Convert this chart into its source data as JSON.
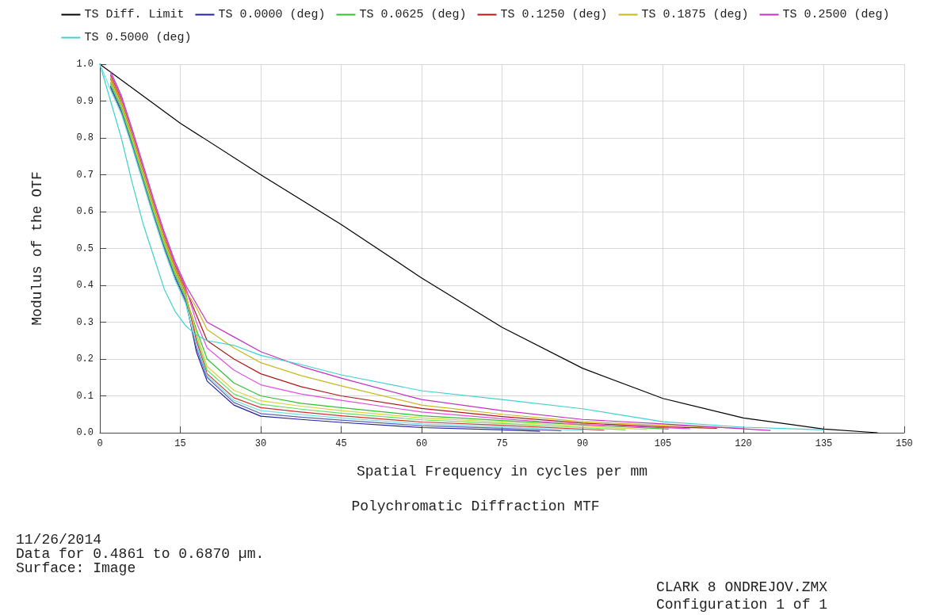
{
  "chart_data": {
    "type": "line",
    "title": "Polychromatic Diffraction MTF",
    "xlabel": "Spatial Frequency in cycles per mm",
    "ylabel": "Modulus of the OTF",
    "annotations": [
      "11/26/2014",
      "Data for 0.4861 to 0.6870 µm.",
      "Surface: Image",
      "CLARK 8 ONDREJOV.ZMX",
      "Configuration 1 of 1"
    ],
    "series": [
      {
        "name": "TS Diff. Limit",
        "color": "#000000",
        "x": [
          0,
          15,
          30,
          45,
          60,
          75,
          90,
          105,
          120,
          135,
          145
        ],
        "values": [
          1,
          0.84,
          0.7,
          0.565,
          0.42,
          0.286,
          0.175,
          0.093,
          0.04,
          0.01,
          0
        ]
      },
      {
        "name": "TS 0.0000 (deg)",
        "color": "#2020a0",
        "x": [
          2,
          4,
          6,
          8,
          10,
          12,
          14,
          16,
          18,
          20,
          25,
          30,
          37.5,
          45,
          60,
          75,
          82
        ],
        "values": [
          0.94,
          0.875,
          0.785,
          0.69,
          0.595,
          0.505,
          0.425,
          0.36,
          0.22,
          0.14,
          0.075,
          0.045,
          0.036,
          0.028,
          0.014,
          0.008,
          0.004
        ]
      },
      {
        "color": "#6060b0",
        "x": [
          2,
          4,
          6,
          8,
          10,
          12,
          14,
          16,
          18,
          20,
          25,
          30,
          37.5,
          45,
          60,
          75,
          86
        ],
        "values": [
          0.935,
          0.87,
          0.78,
          0.685,
          0.59,
          0.5,
          0.42,
          0.355,
          0.23,
          0.15,
          0.082,
          0.052,
          0.042,
          0.034,
          0.019,
          0.012,
          0.005
        ]
      },
      {
        "name": "TS 0.0625 (deg)",
        "color": "#30c030",
        "x": [
          2,
          4,
          6,
          8,
          10,
          12,
          14,
          16,
          18,
          20,
          25,
          30,
          37.5,
          45,
          60,
          75,
          106
        ],
        "values": [
          0.95,
          0.885,
          0.795,
          0.7,
          0.605,
          0.515,
          0.435,
          0.37,
          0.28,
          0.2,
          0.135,
          0.1,
          0.08,
          0.068,
          0.046,
          0.033,
          0.01
        ]
      },
      {
        "color": "#60e060",
        "x": [
          2,
          4,
          6,
          8,
          10,
          12,
          14,
          16,
          18,
          20,
          25,
          30,
          37.5,
          45,
          60,
          75,
          98
        ],
        "values": [
          0.945,
          0.88,
          0.79,
          0.695,
          0.6,
          0.51,
          0.43,
          0.365,
          0.26,
          0.17,
          0.105,
          0.077,
          0.064,
          0.053,
          0.035,
          0.025,
          0.008
        ]
      },
      {
        "name": "TS 0.1250 (deg)",
        "color": "#b01818",
        "x": [
          2,
          4,
          6,
          8,
          10,
          12,
          14,
          16,
          18,
          20,
          25,
          30,
          37.5,
          45,
          60,
          75,
          90,
          105,
          115
        ],
        "values": [
          0.97,
          0.905,
          0.815,
          0.72,
          0.625,
          0.535,
          0.455,
          0.39,
          0.32,
          0.25,
          0.2,
          0.16,
          0.125,
          0.1,
          0.066,
          0.044,
          0.026,
          0.016,
          0.012
        ]
      },
      {
        "color": "#d03030",
        "x": [
          2,
          4,
          6,
          8,
          10,
          12,
          14,
          16,
          18,
          20,
          25,
          30,
          37.5,
          45,
          60,
          75,
          94
        ],
        "values": [
          0.96,
          0.895,
          0.805,
          0.71,
          0.615,
          0.525,
          0.445,
          0.38,
          0.25,
          0.16,
          0.095,
          0.068,
          0.056,
          0.046,
          0.029,
          0.02,
          0.007
        ]
      },
      {
        "name": "TS 0.1875 (deg)",
        "color": "#c8b820",
        "x": [
          2,
          4,
          6,
          8,
          10,
          12,
          14,
          16,
          18,
          20,
          25,
          30,
          37.5,
          45,
          60,
          75,
          90,
          105,
          120
        ],
        "values": [
          0.965,
          0.9,
          0.81,
          0.715,
          0.62,
          0.53,
          0.45,
          0.385,
          0.34,
          0.28,
          0.23,
          0.19,
          0.155,
          0.127,
          0.075,
          0.05,
          0.03,
          0.02,
          0.012
        ]
      },
      {
        "color": "#d8d040",
        "x": [
          2,
          4,
          6,
          8,
          10,
          12,
          14,
          16,
          18,
          20,
          25,
          30,
          37.5,
          45,
          60,
          75,
          102
        ],
        "values": [
          0.955,
          0.89,
          0.8,
          0.705,
          0.61,
          0.52,
          0.44,
          0.375,
          0.27,
          0.18,
          0.115,
          0.087,
          0.072,
          0.06,
          0.04,
          0.029,
          0.009
        ]
      },
      {
        "name": "TS 0.2500 (deg)",
        "color": "#c030c0",
        "x": [
          2,
          4,
          6,
          8,
          10,
          12,
          14,
          16,
          18,
          20,
          25,
          30,
          37.5,
          45,
          60,
          75,
          90,
          105,
          125
        ],
        "values": [
          0.98,
          0.915,
          0.825,
          0.73,
          0.635,
          0.545,
          0.465,
          0.4,
          0.35,
          0.3,
          0.26,
          0.22,
          0.18,
          0.148,
          0.09,
          0.06,
          0.036,
          0.024,
          0.006
        ]
      },
      {
        "color": "#e050e0",
        "x": [
          2,
          4,
          6,
          8,
          10,
          12,
          14,
          16,
          18,
          20,
          25,
          30,
          37.5,
          45,
          60,
          75,
          90,
          110
        ],
        "values": [
          0.975,
          0.91,
          0.82,
          0.725,
          0.63,
          0.54,
          0.46,
          0.395,
          0.3,
          0.23,
          0.17,
          0.13,
          0.105,
          0.088,
          0.056,
          0.038,
          0.022,
          0.011
        ]
      },
      {
        "name": "TS 0.5000 (deg)",
        "color": "#40d0d0",
        "x": [
          0,
          2,
          4,
          6,
          8,
          10,
          12,
          14,
          16,
          18,
          20,
          25,
          30,
          37.5,
          45,
          60,
          75,
          90,
          105,
          120,
          135
        ],
        "values": [
          1,
          0.9,
          0.8,
          0.68,
          0.57,
          0.48,
          0.39,
          0.33,
          0.29,
          0.265,
          0.25,
          0.237,
          0.21,
          0.185,
          0.157,
          0.114,
          0.09,
          0.065,
          0.03,
          0.015,
          0.008
        ]
      },
      {
        "color": "#70e0e0",
        "x": [
          0,
          2,
          4,
          6,
          8,
          10,
          12,
          14,
          16,
          18,
          20,
          25,
          30,
          37.5,
          45,
          60,
          75,
          90
        ],
        "values": [
          1,
          0.93,
          0.865,
          0.775,
          0.68,
          0.585,
          0.495,
          0.415,
          0.35,
          0.24,
          0.155,
          0.088,
          0.06,
          0.049,
          0.04,
          0.024,
          0.016,
          0.006
        ]
      }
    ],
    "xlim": [
      0,
      150
    ],
    "xticks": [
      0,
      15,
      30,
      45,
      60,
      75,
      90,
      105,
      120,
      135,
      150
    ],
    "ylim": [
      0,
      1
    ],
    "yticks": [
      {
        "value": 0,
        "label": "0.0"
      },
      {
        "value": 0.1,
        "label": "0.1"
      },
      {
        "value": 0.2,
        "label": "0.2"
      },
      {
        "value": 0.3,
        "label": "0.3"
      },
      {
        "value": 0.4,
        "label": "0.4"
      },
      {
        "value": 0.5,
        "label": "0.5"
      },
      {
        "value": 0.6,
        "label": "0.6"
      },
      {
        "value": 0.7,
        "label": "0.7"
      },
      {
        "value": 0.8,
        "label": "0.8"
      },
      {
        "value": 0.9,
        "label": "0.9"
      },
      {
        "value": 1,
        "label": "1.0"
      }
    ],
    "grid": true,
    "legend": "top",
    "marker": "none",
    "line_style": "solid"
  }
}
